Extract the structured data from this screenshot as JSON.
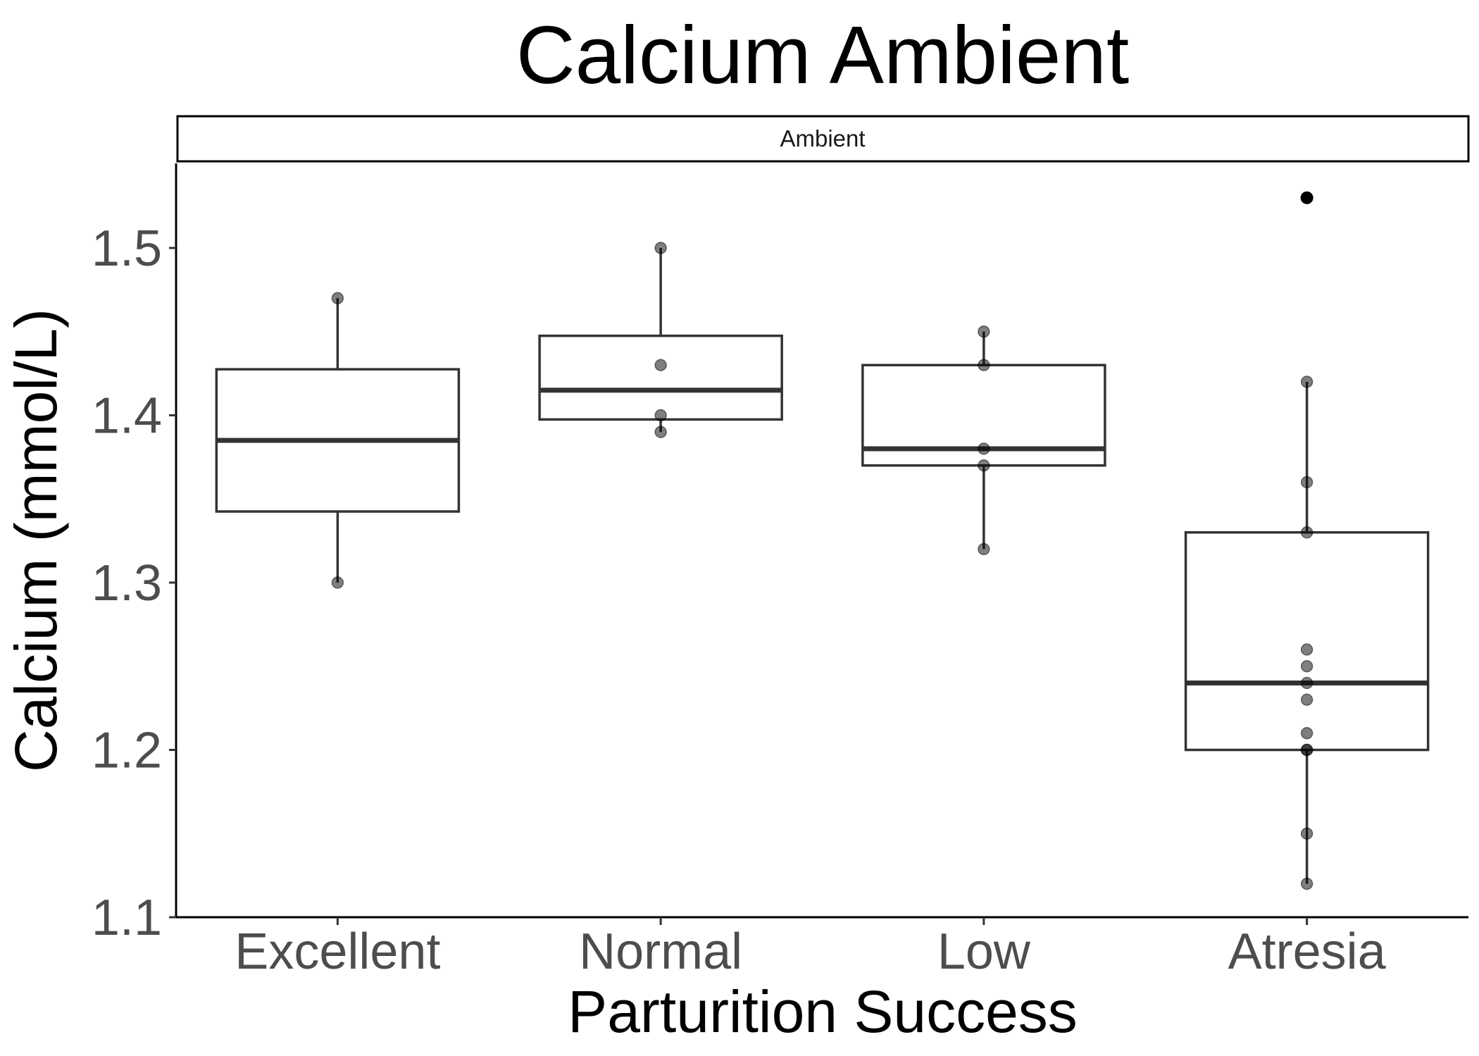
{
  "chart_data": {
    "type": "box",
    "title": "Calcium Ambient",
    "facet_label": "Ambient",
    "xlabel": "Parturition Success",
    "ylabel": "Calcium (mmol/L)",
    "ylim": [
      1.1,
      1.55
    ],
    "y_ticks": [
      1.1,
      1.2,
      1.3,
      1.4,
      1.5
    ],
    "y_tick_labels": [
      "1.1",
      "1.2",
      "1.3",
      "1.4",
      "1.5"
    ],
    "categories": [
      "Excellent",
      "Normal",
      "Low",
      "Atresia"
    ],
    "grid": false,
    "colors": {
      "box_stroke": "#333333",
      "point_fill": "#000000",
      "axis": "#000000"
    },
    "boxes": [
      {
        "category": "Excellent",
        "lower_whisker": 1.3,
        "q1": 1.3425,
        "median": 1.385,
        "q3": 1.4275,
        "upper_whisker": 1.47,
        "outliers": []
      },
      {
        "category": "Normal",
        "lower_whisker": 1.39,
        "q1": 1.3975,
        "median": 1.415,
        "q3": 1.4475,
        "upper_whisker": 1.5,
        "outliers": []
      },
      {
        "category": "Low",
        "lower_whisker": 1.32,
        "q1": 1.37,
        "median": 1.38,
        "q3": 1.43,
        "upper_whisker": 1.45,
        "outliers": []
      },
      {
        "category": "Atresia",
        "lower_whisker": 1.12,
        "q1": 1.2,
        "median": 1.24,
        "q3": 1.33,
        "upper_whisker": 1.42,
        "outliers": [
          1.53
        ]
      }
    ],
    "points": [
      {
        "category": "Excellent",
        "values": [
          1.3,
          1.47
        ]
      },
      {
        "category": "Normal",
        "values": [
          1.39,
          1.4,
          1.43,
          1.5
        ]
      },
      {
        "category": "Low",
        "values": [
          1.32,
          1.37,
          1.38,
          1.43,
          1.45
        ]
      },
      {
        "category": "Atresia",
        "values": [
          1.12,
          1.15,
          1.2,
          1.2,
          1.21,
          1.23,
          1.24,
          1.25,
          1.26,
          1.33,
          1.36,
          1.42,
          1.53
        ]
      }
    ]
  }
}
